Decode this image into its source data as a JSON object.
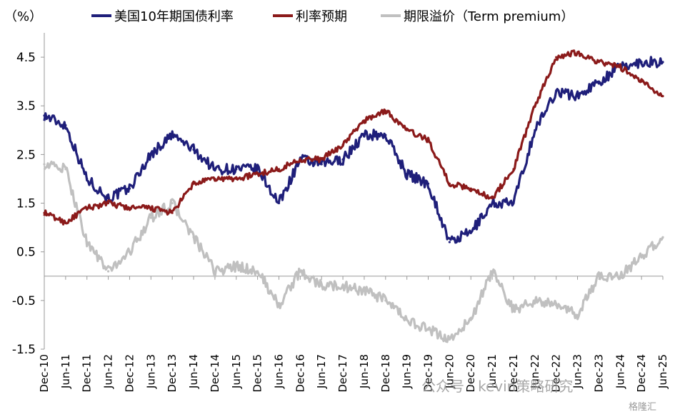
{
  "chart_data": {
    "type": "line",
    "unit_label": "（%）",
    "legend_position": "top",
    "grid": false,
    "ylim": [
      -1.5,
      5.0
    ],
    "yticks": [
      {
        "value": 4.5,
        "label": "4.5"
      },
      {
        "value": 3.5,
        "label": "3.5"
      },
      {
        "value": 2.5,
        "label": "2.5"
      },
      {
        "value": 1.5,
        "label": "1.5"
      },
      {
        "value": 0.5,
        "label": "0.5"
      },
      {
        "value": -0.5,
        "label": "-0.5"
      },
      {
        "value": -1.5,
        "label": "-1.5"
      }
    ],
    "xticks": [
      "Dec-10",
      "Jun-11",
      "Dec-11",
      "Jun-12",
      "Dec-12",
      "Jun-13",
      "Dec-13",
      "Jun-14",
      "Dec-14",
      "Jun-15",
      "Dec-15",
      "Jun-16",
      "Dec-16",
      "Jun-17",
      "Dec-17",
      "Jun-18",
      "Dec-18",
      "Jun-19",
      "Dec-19",
      "Jun-20",
      "Dec-20",
      "Jun-21",
      "Dec-21",
      "Jun-22",
      "Dec-22",
      "Jun-23",
      "Dec-23",
      "Jun-24",
      "Dec-24",
      "Jun-25"
    ],
    "x": [
      "Dec-10",
      "Jun-11",
      "Dec-11",
      "Jun-12",
      "Dec-12",
      "Jun-13",
      "Dec-13",
      "Jun-14",
      "Dec-14",
      "Jun-15",
      "Dec-15",
      "Jun-16",
      "Dec-16",
      "Jun-17",
      "Dec-17",
      "Jun-18",
      "Dec-18",
      "Jun-19",
      "Dec-19",
      "Jun-20",
      "Dec-20",
      "Jun-21",
      "Dec-21",
      "Jun-22",
      "Dec-22",
      "Jun-23",
      "Dec-23",
      "Jun-24",
      "Dec-24",
      "Jun-25"
    ],
    "series": [
      {
        "name": "美国10年期国债利率",
        "color": "#1f1f7a",
        "values": [
          3.3,
          3.1,
          2.0,
          1.6,
          1.8,
          2.5,
          2.9,
          2.6,
          2.2,
          2.2,
          2.2,
          1.5,
          2.4,
          2.3,
          2.4,
          2.9,
          2.9,
          2.1,
          1.9,
          0.7,
          0.9,
          1.5,
          1.5,
          3.0,
          3.8,
          3.7,
          4.0,
          4.3,
          4.4,
          4.4
        ]
      },
      {
        "name": "利率预期",
        "color": "#8b1a1a",
        "values": [
          1.3,
          1.1,
          1.4,
          1.5,
          1.4,
          1.4,
          1.3,
          1.9,
          2.0,
          2.0,
          2.1,
          2.2,
          2.4,
          2.4,
          2.7,
          3.2,
          3.4,
          3.0,
          2.8,
          1.9,
          1.8,
          1.6,
          2.2,
          3.5,
          4.5,
          4.6,
          4.4,
          4.3,
          4.0,
          3.7
        ]
      },
      {
        "name": "期限溢价（Term premium）",
        "color": "#c0c0c0",
        "values": [
          2.3,
          2.2,
          0.7,
          0.1,
          0.5,
          1.2,
          1.5,
          0.8,
          0.1,
          0.2,
          0.1,
          -0.6,
          0.1,
          -0.2,
          -0.2,
          -0.3,
          -0.5,
          -0.9,
          -1.1,
          -1.3,
          -0.9,
          0.1,
          -0.7,
          -0.5,
          -0.6,
          -0.8,
          0.0,
          0.0,
          0.4,
          0.8
        ]
      }
    ]
  },
  "watermark": {
    "text": "公众号 · kevin策略研究",
    "corner_text": "格隆汇"
  }
}
